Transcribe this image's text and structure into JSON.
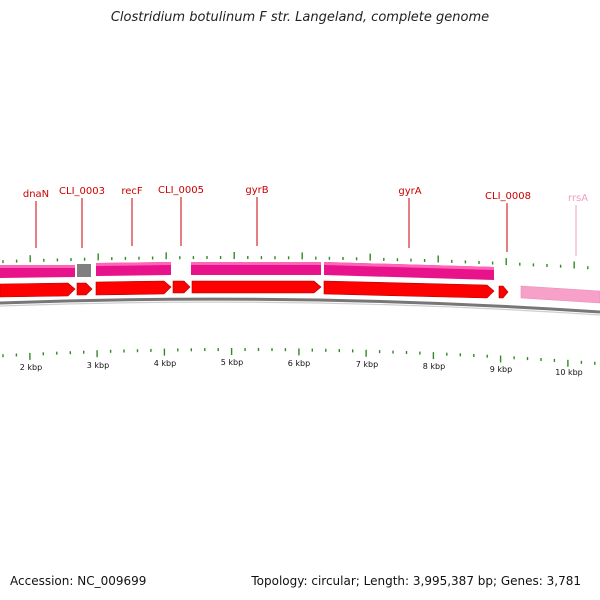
{
  "title": "Clostridium botulinum F str. Langeland, complete genome",
  "accession": "Accession: NC_009699",
  "summary": "Topology: circular; Length: 3,995,387 bp; Genes: 3,781",
  "colors": {
    "gene_label": "#cc0000",
    "rrna_label": "#f29cc3",
    "cds": "#ff0000",
    "cds_dark": "#c40000",
    "gene_pink": "#e8138a",
    "gene_pink_light": "#ff5fb5",
    "rrna": "#f7a1c9",
    "tick": "#2e8b22",
    "backbone": "#777777",
    "unknown": "#888888"
  },
  "gene_labels": [
    {
      "text": "dnaN",
      "kind": "gene"
    },
    {
      "text": "CLI_0003",
      "kind": "gene"
    },
    {
      "text": "recF",
      "kind": "gene"
    },
    {
      "text": "CLI_0005",
      "kind": "gene"
    },
    {
      "text": "gyrB",
      "kind": "gene"
    },
    {
      "text": "gyrA",
      "kind": "gene"
    },
    {
      "text": "CLI_0008",
      "kind": "gene"
    },
    {
      "text": "rrsA",
      "kind": "rrna"
    }
  ],
  "kbp_labels": [
    "2 kbp",
    "3 kbp",
    "4 kbp",
    "5 kbp",
    "6 kbp",
    "7 kbp",
    "8 kbp",
    "9 kbp",
    "10 kbp"
  ]
}
